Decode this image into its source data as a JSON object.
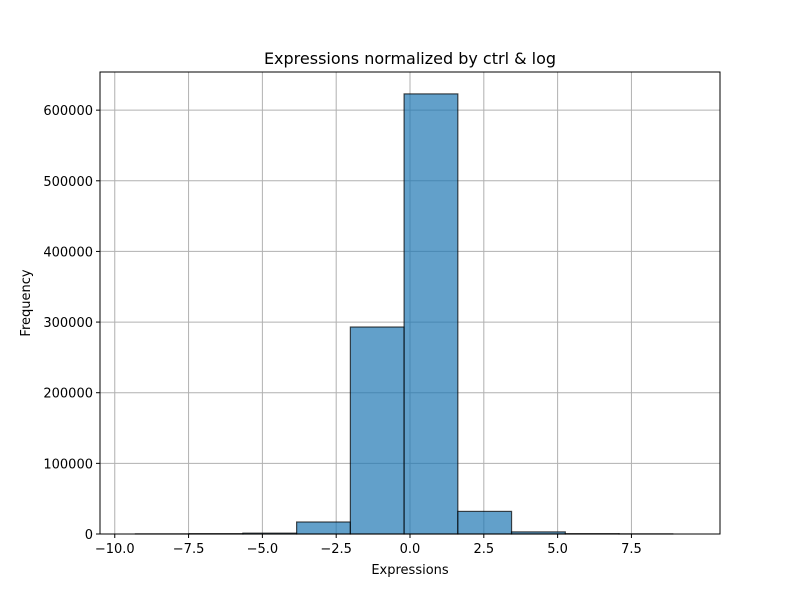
{
  "chart_data": {
    "type": "bar",
    "title": "Expressions normalized by ctrl & log",
    "xlabel": "Expressions",
    "ylabel": "Frequency",
    "xlim": [
      -10.5,
      10.5
    ],
    "ylim": [
      0,
      654000
    ],
    "grid": true,
    "x_ticks": [
      -10.0,
      -7.5,
      -5.0,
      -2.5,
      0.0,
      2.5,
      5.0,
      7.5
    ],
    "x_tick_labels": [
      "−10.0",
      "−7.5",
      "−5.0",
      "−2.5",
      "0.0",
      "2.5",
      "5.0",
      "7.5"
    ],
    "y_ticks": [
      0,
      100000,
      200000,
      300000,
      400000,
      500000,
      600000
    ],
    "y_tick_labels": [
      "0",
      "100000",
      "200000",
      "300000",
      "400000",
      "500000",
      "600000"
    ],
    "bin_edges": [
      -9.3,
      -7.48,
      -5.66,
      -3.84,
      -2.02,
      -0.2,
      1.62,
      3.44,
      5.26,
      7.08,
      8.9
    ],
    "values": [
      200,
      500,
      1200,
      17000,
      293000,
      623000,
      32000,
      3000,
      500,
      200
    ],
    "bar_color": "#1f77b4",
    "edge_color": "#000000"
  }
}
